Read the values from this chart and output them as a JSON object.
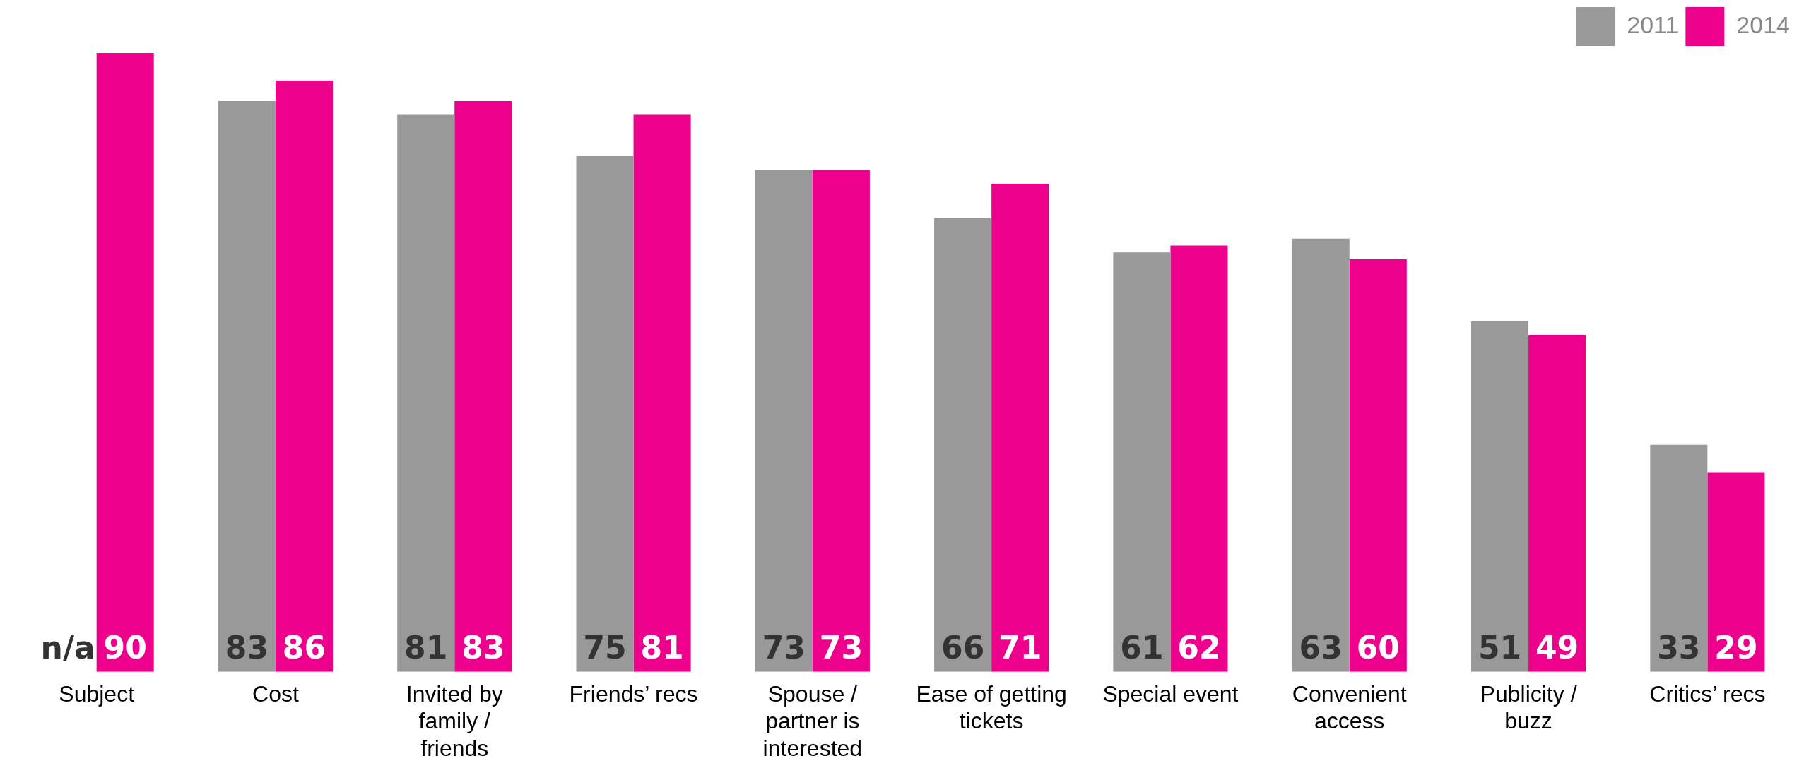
{
  "chart_data": {
    "type": "bar",
    "categories": [
      "Subject",
      "Cost",
      "Invited by family / friends",
      "Friends’ recs",
      "Spouse / partner is interested",
      "Ease of getting tickets",
      "Special event",
      "Convenient access",
      "Publicity / buzz",
      "Critics’ recs"
    ],
    "series": [
      {
        "name": "2011",
        "color": "#999999",
        "values": [
          null,
          83,
          81,
          75,
          73,
          66,
          61,
          63,
          51,
          33
        ],
        "value_labels": [
          "n/a",
          "83",
          "81",
          "75",
          "73",
          "66",
          "61",
          "63",
          "51",
          "33"
        ]
      },
      {
        "name": "2014",
        "color": "#ec008c",
        "values": [
          90,
          86,
          83,
          81,
          73,
          71,
          62,
          60,
          49,
          29
        ]
      }
    ],
    "ylim": [
      0,
      90
    ],
    "tick_labels": "x",
    "grid": false,
    "legend": "top right",
    "data_labels": true
  }
}
